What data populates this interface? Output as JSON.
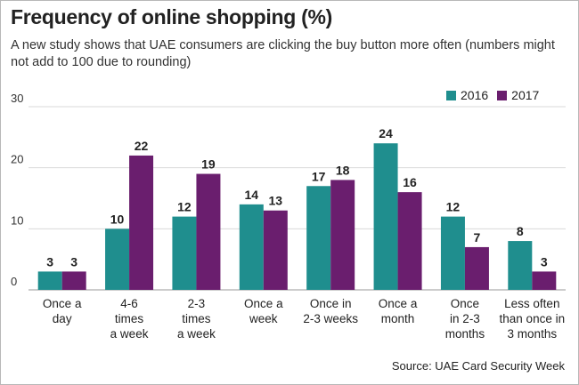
{
  "header": {
    "title": "Frequency of online shopping (%)",
    "subtitle": "A new study shows that UAE consumers are clicking the buy button more often (numbers might not add to 100 due to rounding)"
  },
  "footer": {
    "source": "Source: UAE Card Security Week"
  },
  "colors": {
    "series_2016": "#1f8e8e",
    "series_2017": "#6a1e6e",
    "grid": "#d9d9d9"
  },
  "chart_data": {
    "type": "bar",
    "title": "Frequency of online shopping (%)",
    "xlabel": "",
    "ylabel": "",
    "ylim": [
      0,
      30
    ],
    "yticks": [
      0,
      10,
      20,
      30
    ],
    "grid": true,
    "legend_position": "top-right",
    "categories": [
      [
        "Once a",
        "day"
      ],
      [
        "4-6",
        "times",
        "a week"
      ],
      [
        "2-3",
        "times",
        "a week"
      ],
      [
        "Once a",
        "week"
      ],
      [
        "Once in",
        "2-3 weeks"
      ],
      [
        "Once a",
        "month"
      ],
      [
        "Once",
        "in 2-3",
        "months"
      ],
      [
        "Less often",
        "than once in",
        "3 months"
      ]
    ],
    "series": [
      {
        "name": "2016",
        "values": [
          3,
          10,
          12,
          14,
          17,
          24,
          12,
          8
        ]
      },
      {
        "name": "2017",
        "values": [
          3,
          22,
          19,
          13,
          18,
          16,
          7,
          3
        ]
      }
    ]
  }
}
